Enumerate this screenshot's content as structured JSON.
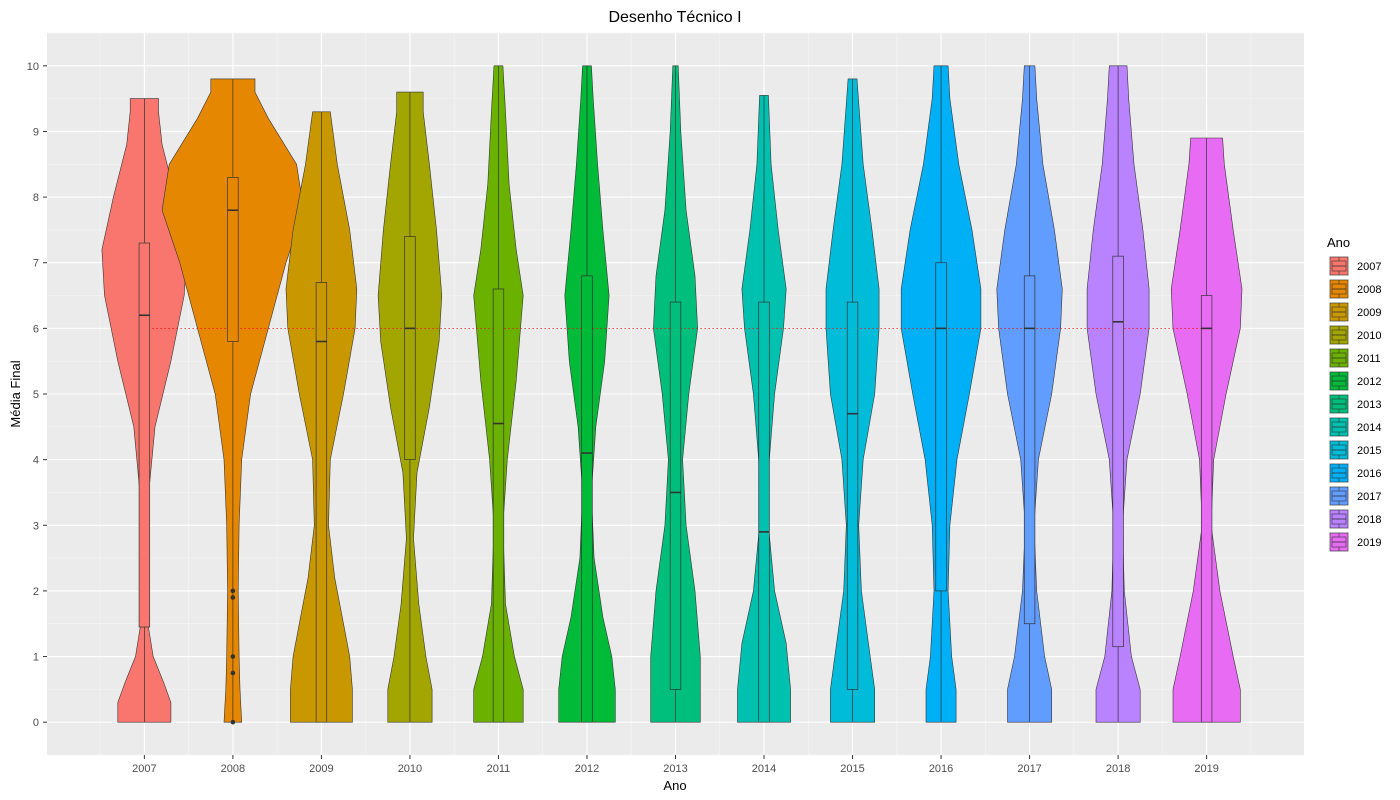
{
  "chart_data": {
    "type": "violin",
    "title": "Desenho Técnico I",
    "xlabel": "Ano",
    "ylabel": "Média Final",
    "ylim": [
      -0.5,
      10.5
    ],
    "yticks": [
      0,
      1,
      2,
      3,
      4,
      5,
      6,
      7,
      8,
      9,
      10
    ],
    "grid": true,
    "reference_line": {
      "y": 6,
      "color": "#ff0000",
      "style": "dotted"
    },
    "legend": {
      "title": "Ano",
      "placement": "right"
    },
    "categories": [
      "2007",
      "2008",
      "2009",
      "2010",
      "2011",
      "2012",
      "2013",
      "2014",
      "2015",
      "2016",
      "2017",
      "2018",
      "2019"
    ],
    "series": [
      {
        "name": "2007",
        "color": "#F8766D",
        "min": 0,
        "max": 9.5,
        "q1": 1.45,
        "median": 6.2,
        "q3": 7.3,
        "density": [
          [
            0,
            0.3
          ],
          [
            0.3,
            0.3
          ],
          [
            0.6,
            0.22
          ],
          [
            1.0,
            0.1
          ],
          [
            1.5,
            0.04
          ],
          [
            2.5,
            0.02
          ],
          [
            3.5,
            0.05
          ],
          [
            4.5,
            0.12
          ],
          [
            5.5,
            0.3
          ],
          [
            6.5,
            0.45
          ],
          [
            7.2,
            0.48
          ],
          [
            8.0,
            0.35
          ],
          [
            8.8,
            0.2
          ],
          [
            9.3,
            0.16
          ],
          [
            9.5,
            0.16
          ]
        ],
        "outliers": []
      },
      {
        "name": "2008",
        "color": "#E58700",
        "min": 0,
        "max": 9.8,
        "q1": 5.8,
        "median": 7.8,
        "q3": 8.3,
        "density": [
          [
            0,
            0.1
          ],
          [
            0.5,
            0.08
          ],
          [
            1,
            0.07
          ],
          [
            2,
            0.06
          ],
          [
            3,
            0.07
          ],
          [
            4,
            0.1
          ],
          [
            5,
            0.2
          ],
          [
            6,
            0.4
          ],
          [
            7,
            0.6
          ],
          [
            7.8,
            0.8
          ],
          [
            8.5,
            0.72
          ],
          [
            9.2,
            0.4
          ],
          [
            9.6,
            0.25
          ],
          [
            9.8,
            0.25
          ]
        ],
        "outliers": [
          0,
          0.75,
          1.0,
          1.9,
          2.0
        ]
      },
      {
        "name": "2009",
        "color": "#C99800",
        "min": 0,
        "max": 9.3,
        "q1": 0,
        "median": 5.8,
        "q3": 6.7,
        "density": [
          [
            0,
            0.35
          ],
          [
            0.5,
            0.35
          ],
          [
            1.0,
            0.32
          ],
          [
            1.5,
            0.25
          ],
          [
            2.2,
            0.15
          ],
          [
            3.0,
            0.08
          ],
          [
            4.0,
            0.1
          ],
          [
            5.0,
            0.25
          ],
          [
            6.0,
            0.38
          ],
          [
            6.6,
            0.4
          ],
          [
            7.5,
            0.32
          ],
          [
            8.5,
            0.18
          ],
          [
            9.3,
            0.1
          ]
        ],
        "outliers": []
      },
      {
        "name": "2010",
        "color": "#A3A500",
        "min": 0,
        "max": 9.6,
        "q1": 4.0,
        "median": 6.0,
        "q3": 7.4,
        "density": [
          [
            0,
            0.25
          ],
          [
            0.5,
            0.25
          ],
          [
            1.0,
            0.18
          ],
          [
            1.8,
            0.1
          ],
          [
            2.8,
            0.04
          ],
          [
            3.8,
            0.08
          ],
          [
            4.8,
            0.22
          ],
          [
            5.8,
            0.33
          ],
          [
            6.5,
            0.36
          ],
          [
            7.5,
            0.3
          ],
          [
            8.5,
            0.22
          ],
          [
            9.3,
            0.15
          ],
          [
            9.6,
            0.15
          ]
        ],
        "outliers": []
      },
      {
        "name": "2011",
        "color": "#6BB100",
        "min": 0,
        "max": 10,
        "q1": 0,
        "median": 4.55,
        "q3": 6.6,
        "density": [
          [
            0,
            0.28
          ],
          [
            0.5,
            0.28
          ],
          [
            1.0,
            0.18
          ],
          [
            1.8,
            0.08
          ],
          [
            3.0,
            0.05
          ],
          [
            4.0,
            0.1
          ],
          [
            5.2,
            0.2
          ],
          [
            6.5,
            0.28
          ],
          [
            7.2,
            0.2
          ],
          [
            8.2,
            0.12
          ],
          [
            9.3,
            0.08
          ],
          [
            10,
            0.05
          ]
        ],
        "outliers": []
      },
      {
        "name": "2012",
        "color": "#00BA38",
        "min": 0,
        "max": 10,
        "q1": 0,
        "median": 4.1,
        "q3": 6.8,
        "density": [
          [
            0,
            0.32
          ],
          [
            0.5,
            0.32
          ],
          [
            1.0,
            0.28
          ],
          [
            1.6,
            0.18
          ],
          [
            2.5,
            0.08
          ],
          [
            3.5,
            0.05
          ],
          [
            4.5,
            0.1
          ],
          [
            5.5,
            0.2
          ],
          [
            6.5,
            0.25
          ],
          [
            7.5,
            0.18
          ],
          [
            8.5,
            0.12
          ],
          [
            9.5,
            0.07
          ],
          [
            10,
            0.05
          ]
        ],
        "outliers": []
      },
      {
        "name": "2013",
        "color": "#00BF7D",
        "min": 0,
        "max": 10,
        "q1": 0.5,
        "median": 3.5,
        "q3": 6.4,
        "density": [
          [
            0,
            0.28
          ],
          [
            0.5,
            0.28
          ],
          [
            1.0,
            0.28
          ],
          [
            2.0,
            0.22
          ],
          [
            3.0,
            0.12
          ],
          [
            4.0,
            0.08
          ],
          [
            5.0,
            0.15
          ],
          [
            6.0,
            0.25
          ],
          [
            6.8,
            0.22
          ],
          [
            7.8,
            0.12
          ],
          [
            9.0,
            0.06
          ],
          [
            10,
            0.03
          ]
        ],
        "outliers": []
      },
      {
        "name": "2014",
        "color": "#00C0AF",
        "min": 0,
        "max": 9.55,
        "q1": 0,
        "median": 2.9,
        "q3": 6.4,
        "density": [
          [
            0,
            0.3
          ],
          [
            0.5,
            0.3
          ],
          [
            1.2,
            0.25
          ],
          [
            2.0,
            0.12
          ],
          [
            3.0,
            0.05
          ],
          [
            4.0,
            0.06
          ],
          [
            5.0,
            0.12
          ],
          [
            6.0,
            0.22
          ],
          [
            6.6,
            0.25
          ],
          [
            7.5,
            0.16
          ],
          [
            8.5,
            0.08
          ],
          [
            9.55,
            0.05
          ]
        ],
        "outliers": []
      },
      {
        "name": "2015",
        "color": "#00BCD8",
        "min": 0,
        "max": 9.8,
        "q1": 0.5,
        "median": 4.7,
        "q3": 6.4,
        "density": [
          [
            0,
            0.25
          ],
          [
            0.5,
            0.25
          ],
          [
            1.0,
            0.2
          ],
          [
            2.0,
            0.1
          ],
          [
            3.0,
            0.07
          ],
          [
            4.0,
            0.12
          ],
          [
            5.0,
            0.25
          ],
          [
            6.0,
            0.3
          ],
          [
            6.6,
            0.3
          ],
          [
            7.5,
            0.22
          ],
          [
            8.5,
            0.12
          ],
          [
            9.8,
            0.05
          ]
        ],
        "outliers": []
      },
      {
        "name": "2016",
        "color": "#00B0F6",
        "min": 0,
        "max": 10,
        "q1": 2.0,
        "median": 6.0,
        "q3": 7.0,
        "density": [
          [
            0,
            0.17
          ],
          [
            0.5,
            0.17
          ],
          [
            1.0,
            0.12
          ],
          [
            2.0,
            0.08
          ],
          [
            3.0,
            0.1
          ],
          [
            4.0,
            0.18
          ],
          [
            5.0,
            0.32
          ],
          [
            6.0,
            0.45
          ],
          [
            6.6,
            0.45
          ],
          [
            7.5,
            0.35
          ],
          [
            8.5,
            0.2
          ],
          [
            9.5,
            0.1
          ],
          [
            10,
            0.08
          ]
        ],
        "outliers": []
      },
      {
        "name": "2017",
        "color": "#619CFF",
        "min": 0,
        "max": 10,
        "q1": 1.5,
        "median": 6.0,
        "q3": 6.8,
        "density": [
          [
            0,
            0.25
          ],
          [
            0.5,
            0.25
          ],
          [
            1.0,
            0.17
          ],
          [
            2.0,
            0.08
          ],
          [
            3.0,
            0.05
          ],
          [
            4.0,
            0.1
          ],
          [
            5.0,
            0.25
          ],
          [
            6.0,
            0.35
          ],
          [
            6.6,
            0.37
          ],
          [
            7.5,
            0.28
          ],
          [
            8.5,
            0.15
          ],
          [
            9.5,
            0.08
          ],
          [
            10,
            0.06
          ]
        ],
        "outliers": []
      },
      {
        "name": "2018",
        "color": "#B983FF",
        "min": 0,
        "max": 10,
        "q1": 1.15,
        "median": 6.1,
        "q3": 7.1,
        "density": [
          [
            0,
            0.25
          ],
          [
            0.5,
            0.25
          ],
          [
            1.0,
            0.15
          ],
          [
            2.0,
            0.07
          ],
          [
            3.0,
            0.05
          ],
          [
            4.0,
            0.1
          ],
          [
            5.0,
            0.25
          ],
          [
            6.0,
            0.35
          ],
          [
            6.6,
            0.35
          ],
          [
            7.5,
            0.28
          ],
          [
            8.5,
            0.18
          ],
          [
            9.5,
            0.12
          ],
          [
            10,
            0.1
          ]
        ],
        "outliers": []
      },
      {
        "name": "2019",
        "color": "#E76BF3",
        "min": 0,
        "max": 8.9,
        "q1": 0,
        "median": 6.0,
        "q3": 6.5,
        "density": [
          [
            0,
            0.38
          ],
          [
            0.5,
            0.38
          ],
          [
            1.0,
            0.3
          ],
          [
            2.0,
            0.15
          ],
          [
            3.0,
            0.05
          ],
          [
            4.0,
            0.08
          ],
          [
            5.0,
            0.22
          ],
          [
            6.0,
            0.38
          ],
          [
            6.6,
            0.4
          ],
          [
            7.5,
            0.3
          ],
          [
            8.5,
            0.2
          ],
          [
            8.9,
            0.18
          ]
        ],
        "outliers": []
      }
    ],
    "legend_colors_note": "see series"
  }
}
